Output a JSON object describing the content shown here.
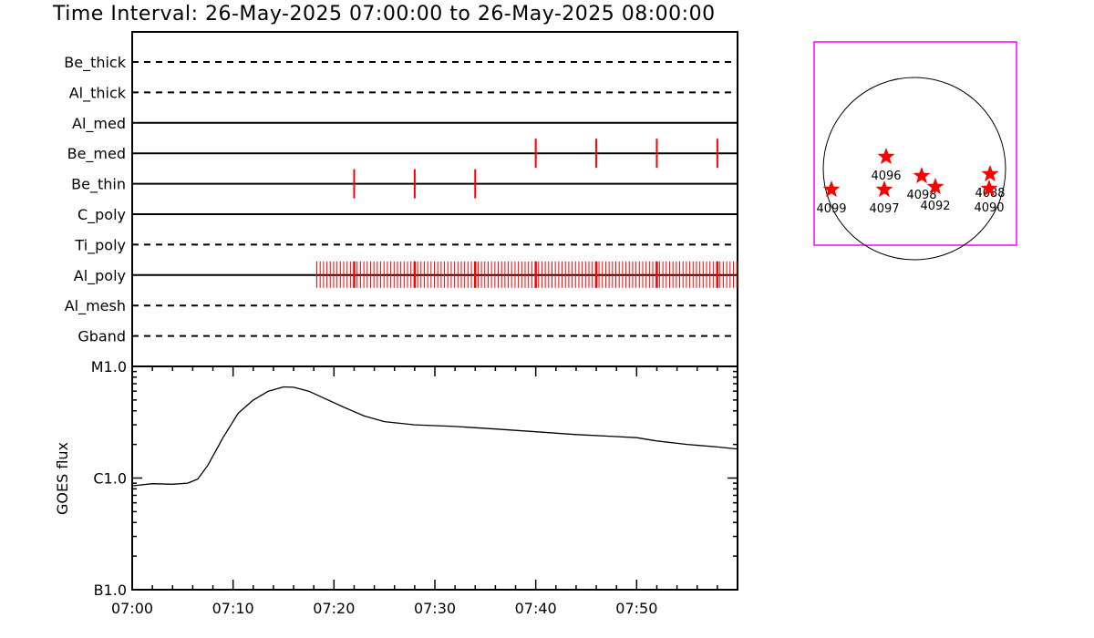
{
  "header": {
    "title": "Time Interval: 26-May-2025 07:00:00 to 26-May-2025 08:00:00"
  },
  "chart_data": [
    {
      "type": "timeline",
      "x_range_minutes": [
        0,
        60
      ],
      "rows": [
        {
          "name": "Be_thick",
          "style": "dashed",
          "marks": []
        },
        {
          "name": "Al_thick",
          "style": "dashed",
          "marks": []
        },
        {
          "name": "Al_med",
          "style": "solid",
          "marks": []
        },
        {
          "name": "Be_med",
          "style": "solid",
          "marks": [
            40,
            46,
            52,
            58
          ]
        },
        {
          "name": "Be_thin",
          "style": "solid",
          "marks": [
            22,
            28,
            34
          ]
        },
        {
          "name": "C_poly",
          "style": "solid",
          "marks": []
        },
        {
          "name": "Ti_poly",
          "style": "dashed",
          "marks": []
        },
        {
          "name": "Al_poly",
          "style": "solid",
          "marks_start": 18.3,
          "marks_step": 0.333,
          "marks_end": 60,
          "bold_marks": [
            22,
            28,
            34,
            40,
            46,
            52,
            58
          ]
        },
        {
          "name": "Al_mesh",
          "style": "dashed",
          "marks": []
        },
        {
          "name": "Gband",
          "style": "dashed",
          "marks": []
        }
      ]
    },
    {
      "type": "line",
      "ylabel": "GOES flux",
      "ylog": true,
      "ylim": [
        1e-06,
        0.0001
      ],
      "yticks": [
        {
          "label": "B1.0",
          "value": 1e-06
        },
        {
          "label": "C1.0",
          "value": 1e-05
        },
        {
          "label": "M1.0",
          "value": 0.0001
        }
      ],
      "xticks": [
        "07:00",
        "07:10",
        "07:20",
        "07:30",
        "07:40",
        "07:50"
      ],
      "xtick_minutes": [
        0,
        10,
        20,
        30,
        40,
        50
      ],
      "x_range_minutes": [
        0,
        60
      ],
      "x": [
        0,
        2,
        4,
        5.5,
        6.5,
        7.5,
        9,
        10.5,
        12,
        13.5,
        15,
        16,
        17.5,
        19,
        21,
        23,
        25,
        28,
        32,
        36,
        40,
        44,
        48,
        50,
        52,
        55,
        58,
        60
      ],
      "y": [
        8.5e-06,
        8.9e-06,
        8.8e-06,
        9e-06,
        9.8e-06,
        1.3e-05,
        2.3e-05,
        3.8e-05,
        5e-05,
        6e-05,
        6.55e-05,
        6.5e-05,
        6e-05,
        5.2e-05,
        4.3e-05,
        3.6e-05,
        3.2e-05,
        3e-05,
        2.9e-05,
        2.75e-05,
        2.6e-05,
        2.45e-05,
        2.35e-05,
        2.3e-05,
        2.15e-05,
        2e-05,
        1.9e-05,
        1.82e-05
      ]
    },
    {
      "type": "scatter",
      "ar_labels": [
        "4096",
        "4098",
        "4088",
        "4099",
        "4097",
        "4092",
        "4090"
      ],
      "points": [
        {
          "label": "4096",
          "x": 0.65,
          "y": 0.13
        },
        {
          "label": "4098",
          "x": 0.86,
          "y": -0.08
        },
        {
          "label": "4088",
          "x": 1.46,
          "y": -0.06
        },
        {
          "label": "4099",
          "x": -0.72,
          "y": -0.23
        },
        {
          "label": "4097",
          "x": 0.67,
          "y": -0.24
        },
        {
          "label": "4092",
          "x": 0.99,
          "y": -0.22
        },
        {
          "label": "4090",
          "x": 1.45,
          "y": -0.25
        }
      ]
    }
  ]
}
